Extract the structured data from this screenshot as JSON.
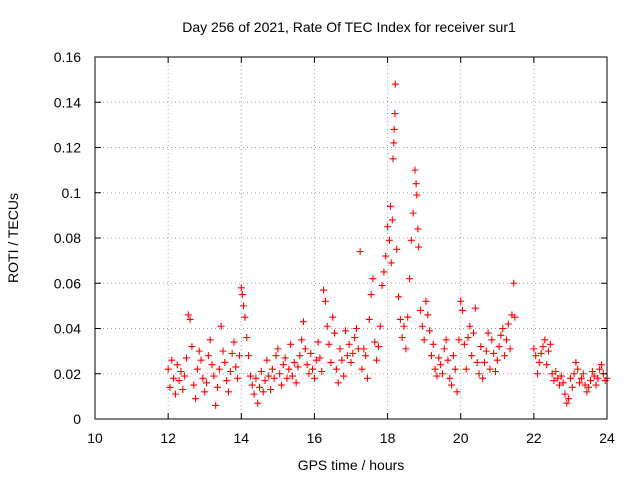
{
  "chart_data": {
    "type": "scatter",
    "title": "Day 256 of 2021, Rate Of TEC Index for receiver sur1",
    "xlabel": "GPS time / hours",
    "ylabel": "ROTI / TECUs",
    "xlim": [
      10,
      24
    ],
    "ylim": [
      0,
      0.16
    ],
    "x_ticks": [
      10,
      12,
      14,
      16,
      18,
      20,
      22,
      24
    ],
    "y_ticks": [
      0,
      0.02,
      0.04,
      0.06,
      0.08,
      0.1,
      0.12,
      0.14,
      0.16
    ],
    "x_tick_labels": [
      "10",
      "12",
      "14",
      "16",
      "18",
      "20",
      "22",
      "24"
    ],
    "y_tick_labels": [
      "0",
      "0.02",
      "0.04",
      "0.06",
      "0.08",
      "0.1",
      "0.12",
      "0.14",
      "0.16"
    ],
    "grid": true,
    "marker": "+",
    "color": "#ff0000",
    "series": [
      {
        "name": "ROTI",
        "points": [
          [
            12.0,
            0.022
          ],
          [
            12.05,
            0.014
          ],
          [
            12.1,
            0.026
          ],
          [
            12.15,
            0.018
          ],
          [
            12.2,
            0.011
          ],
          [
            12.25,
            0.024
          ],
          [
            12.3,
            0.017
          ],
          [
            12.35,
            0.021
          ],
          [
            12.4,
            0.013
          ],
          [
            12.45,
            0.019
          ],
          [
            12.5,
            0.027
          ],
          [
            12.55,
            0.046
          ],
          [
            12.6,
            0.044
          ],
          [
            12.65,
            0.032
          ],
          [
            12.7,
            0.015
          ],
          [
            12.75,
            0.009
          ],
          [
            12.8,
            0.022
          ],
          [
            12.85,
            0.03
          ],
          [
            12.9,
            0.026
          ],
          [
            12.95,
            0.018
          ],
          [
            13.0,
            0.012
          ],
          [
            13.05,
            0.016
          ],
          [
            13.1,
            0.028
          ],
          [
            13.15,
            0.035
          ],
          [
            13.2,
            0.024
          ],
          [
            13.25,
            0.019
          ],
          [
            13.3,
            0.006
          ],
          [
            13.35,
            0.014
          ],
          [
            13.4,
            0.022
          ],
          [
            13.45,
            0.041
          ],
          [
            13.5,
            0.03
          ],
          [
            13.55,
            0.025
          ],
          [
            13.6,
            0.017
          ],
          [
            13.65,
            0.012
          ],
          [
            13.7,
            0.021
          ],
          [
            13.75,
            0.029
          ],
          [
            13.8,
            0.034
          ],
          [
            13.85,
            0.023
          ],
          [
            13.9,
            0.018
          ],
          [
            13.95,
            0.028
          ],
          [
            14.0,
            0.058
          ],
          [
            14.03,
            0.055
          ],
          [
            14.06,
            0.05
          ],
          [
            14.1,
            0.045
          ],
          [
            14.15,
            0.036
          ],
          [
            14.2,
            0.028
          ],
          [
            14.25,
            0.019
          ],
          [
            14.3,
            0.015
          ],
          [
            14.35,
            0.011
          ],
          [
            14.4,
            0.018
          ],
          [
            14.45,
            0.007
          ],
          [
            14.5,
            0.014
          ],
          [
            14.55,
            0.021
          ],
          [
            14.6,
            0.012
          ],
          [
            14.65,
            0.017
          ],
          [
            14.7,
            0.026
          ],
          [
            14.75,
            0.019
          ],
          [
            14.8,
            0.013
          ],
          [
            14.85,
            0.022
          ],
          [
            14.9,
            0.018
          ],
          [
            14.95,
            0.028
          ],
          [
            15.0,
            0.031
          ],
          [
            15.05,
            0.02
          ],
          [
            15.1,
            0.015
          ],
          [
            15.15,
            0.024
          ],
          [
            15.2,
            0.027
          ],
          [
            15.25,
            0.018
          ],
          [
            15.3,
            0.022
          ],
          [
            15.35,
            0.033
          ],
          [
            15.4,
            0.019
          ],
          [
            15.45,
            0.025
          ],
          [
            15.5,
            0.016
          ],
          [
            15.55,
            0.023
          ],
          [
            15.6,
            0.028
          ],
          [
            15.65,
            0.035
          ],
          [
            15.7,
            0.043
          ],
          [
            15.75,
            0.031
          ],
          [
            15.8,
            0.024
          ],
          [
            15.85,
            0.02
          ],
          [
            15.9,
            0.029
          ],
          [
            15.95,
            0.022
          ],
          [
            16.0,
            0.018
          ],
          [
            16.05,
            0.026
          ],
          [
            16.1,
            0.034
          ],
          [
            16.15,
            0.027
          ],
          [
            16.2,
            0.021
          ],
          [
            16.25,
            0.057
          ],
          [
            16.3,
            0.052
          ],
          [
            16.35,
            0.041
          ],
          [
            16.4,
            0.033
          ],
          [
            16.45,
            0.025
          ],
          [
            16.5,
            0.045
          ],
          [
            16.55,
            0.038
          ],
          [
            16.6,
            0.022
          ],
          [
            16.65,
            0.016
          ],
          [
            16.7,
            0.031
          ],
          [
            16.75,
            0.026
          ],
          [
            16.8,
            0.019
          ],
          [
            16.85,
            0.039
          ],
          [
            16.9,
            0.028
          ],
          [
            16.95,
            0.033
          ],
          [
            17.0,
            0.025
          ],
          [
            17.05,
            0.029
          ],
          [
            17.1,
            0.036
          ],
          [
            17.15,
            0.04
          ],
          [
            17.2,
            0.031
          ],
          [
            17.25,
            0.074
          ],
          [
            17.3,
            0.022
          ],
          [
            17.35,
            0.031
          ],
          [
            17.4,
            0.028
          ],
          [
            17.45,
            0.018
          ],
          [
            17.5,
            0.044
          ],
          [
            17.55,
            0.055
          ],
          [
            17.6,
            0.062
          ],
          [
            17.65,
            0.034
          ],
          [
            17.7,
            0.026
          ],
          [
            17.75,
            0.032
          ],
          [
            17.8,
            0.041
          ],
          [
            17.85,
            0.059
          ],
          [
            17.9,
            0.065
          ],
          [
            17.95,
            0.072
          ],
          [
            18.0,
            0.085
          ],
          [
            18.05,
            0.079
          ],
          [
            18.08,
            0.094
          ],
          [
            18.1,
            0.069
          ],
          [
            18.13,
            0.088
          ],
          [
            18.15,
            0.115
          ],
          [
            18.17,
            0.122
          ],
          [
            18.18,
            0.128
          ],
          [
            18.2,
            0.135
          ],
          [
            18.21,
            0.148
          ],
          [
            18.25,
            0.075
          ],
          [
            18.3,
            0.054
          ],
          [
            18.35,
            0.044
          ],
          [
            18.4,
            0.036
          ],
          [
            18.45,
            0.041
          ],
          [
            18.5,
            0.031
          ],
          [
            18.55,
            0.045
          ],
          [
            18.6,
            0.062
          ],
          [
            18.65,
            0.079
          ],
          [
            18.7,
            0.091
          ],
          [
            18.75,
            0.11
          ],
          [
            18.78,
            0.104
          ],
          [
            18.8,
            0.099
          ],
          [
            18.83,
            0.084
          ],
          [
            18.85,
            0.076
          ],
          [
            18.9,
            0.048
          ],
          [
            18.95,
            0.041
          ],
          [
            19.0,
            0.035
          ],
          [
            19.05,
            0.052
          ],
          [
            19.1,
            0.046
          ],
          [
            19.15,
            0.039
          ],
          [
            19.2,
            0.028
          ],
          [
            19.25,
            0.033
          ],
          [
            19.3,
            0.022
          ],
          [
            19.35,
            0.019
          ],
          [
            19.4,
            0.027
          ],
          [
            19.45,
            0.024
          ],
          [
            19.5,
            0.02
          ],
          [
            19.55,
            0.031
          ],
          [
            19.6,
            0.035
          ],
          [
            19.65,
            0.026
          ],
          [
            19.7,
            0.018
          ],
          [
            19.75,
            0.015
          ],
          [
            19.8,
            0.028
          ],
          [
            19.85,
            0.022
          ],
          [
            19.9,
            0.012
          ],
          [
            19.95,
            0.035
          ],
          [
            20.0,
            0.052
          ],
          [
            20.05,
            0.048
          ],
          [
            20.1,
            0.033
          ],
          [
            20.15,
            0.022
          ],
          [
            20.2,
            0.036
          ],
          [
            20.25,
            0.041
          ],
          [
            20.3,
            0.028
          ],
          [
            20.35,
            0.038
          ],
          [
            20.4,
            0.049
          ],
          [
            20.45,
            0.025
          ],
          [
            20.5,
            0.02
          ],
          [
            20.55,
            0.032
          ],
          [
            20.6,
            0.018
          ],
          [
            20.65,
            0.025
          ],
          [
            20.7,
            0.03
          ],
          [
            20.75,
            0.038
          ],
          [
            20.8,
            0.022
          ],
          [
            20.85,
            0.035
          ],
          [
            20.9,
            0.029
          ],
          [
            20.95,
            0.021
          ],
          [
            21.0,
            0.026
          ],
          [
            21.05,
            0.032
          ],
          [
            21.1,
            0.037
          ],
          [
            21.15,
            0.04
          ],
          [
            21.2,
            0.028
          ],
          [
            21.25,
            0.035
          ],
          [
            21.3,
            0.042
          ],
          [
            21.35,
            0.031
          ],
          [
            21.4,
            0.046
          ],
          [
            21.45,
            0.06
          ],
          [
            21.48,
            0.045
          ],
          [
            22.0,
            0.031
          ],
          [
            22.05,
            0.028
          ],
          [
            22.1,
            0.02
          ],
          [
            22.15,
            0.025
          ],
          [
            22.2,
            0.029
          ],
          [
            22.25,
            0.032
          ],
          [
            22.3,
            0.035
          ],
          [
            22.35,
            0.024
          ],
          [
            22.4,
            0.03
          ],
          [
            22.45,
            0.033
          ],
          [
            22.5,
            0.02
          ],
          [
            22.55,
            0.017
          ],
          [
            22.6,
            0.021
          ],
          [
            22.65,
            0.018
          ],
          [
            22.7,
            0.015
          ],
          [
            22.75,
            0.019
          ],
          [
            22.8,
            0.016
          ],
          [
            22.85,
            0.011
          ],
          [
            22.9,
            0.007
          ],
          [
            22.95,
            0.009
          ],
          [
            23.0,
            0.018
          ],
          [
            23.05,
            0.014
          ],
          [
            23.1,
            0.02
          ],
          [
            23.15,
            0.025
          ],
          [
            23.2,
            0.022
          ],
          [
            23.25,
            0.016
          ],
          [
            23.3,
            0.018
          ],
          [
            23.35,
            0.02
          ],
          [
            23.4,
            0.015
          ],
          [
            23.45,
            0.012
          ],
          [
            23.5,
            0.014
          ],
          [
            23.55,
            0.017
          ],
          [
            23.6,
            0.021
          ],
          [
            23.65,
            0.019
          ],
          [
            23.7,
            0.015
          ],
          [
            23.75,
            0.018
          ],
          [
            23.8,
            0.022
          ],
          [
            23.85,
            0.024
          ],
          [
            23.9,
            0.02
          ],
          [
            23.95,
            0.017
          ],
          [
            24.0,
            0.018
          ]
        ]
      }
    ]
  }
}
